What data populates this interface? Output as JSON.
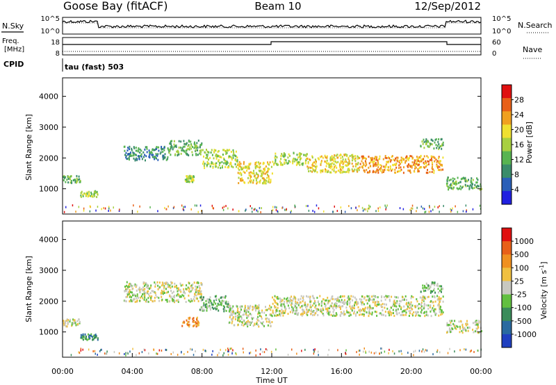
{
  "header": {
    "station": "Goose Bay (fitACF)",
    "beam": "Beam 10",
    "date": "12/Sep/2012"
  },
  "noise_panel": {
    "left_label": "N.Sky",
    "left_ticks": [
      "10^5",
      "10^0"
    ],
    "right_ticks": [
      "10^5",
      "10^0"
    ],
    "right_label": "N.Search"
  },
  "freq_panel": {
    "left_label_1": "Freq.",
    "left_label_2": "[MHz]",
    "left_ticks": [
      "18",
      "8"
    ],
    "right_ticks": [
      "60",
      "0"
    ],
    "right_label": "Nave"
  },
  "cpid": {
    "label": "CPID",
    "value": "tau (fast) 503"
  },
  "chart_data": [
    {
      "type": "heatmap",
      "quantity": "Power",
      "ylabel": "Slant Range [km]",
      "yticks": [
        "4000",
        "3000",
        "2000",
        "1000"
      ],
      "ylim": [
        180,
        4600
      ],
      "colorbar_label": "Power [dB]",
      "colorbar_ticks": [
        "28",
        "24",
        "20",
        "16",
        "12",
        "8",
        "4"
      ],
      "colors": [
        "#2020e0",
        "#2a5fb8",
        "#3a8c6a",
        "#58b450",
        "#a8d040",
        "#f0e030",
        "#f0a020",
        "#e86018",
        "#e01010"
      ],
      "scatter_regions": [
        {
          "x": [
            0.0,
            1.0
          ],
          "y": [
            1200,
            1450
          ],
          "level": 3
        },
        {
          "x": [
            1.0,
            2.0
          ],
          "y": [
            760,
            960
          ],
          "level": 4
        },
        {
          "x": [
            3.5,
            6.0
          ],
          "y": [
            1950,
            2400
          ],
          "level": 2
        },
        {
          "x": [
            6.0,
            8.0
          ],
          "y": [
            2100,
            2600
          ],
          "level": 3
        },
        {
          "x": [
            7.0,
            7.5
          ],
          "y": [
            1250,
            1450
          ],
          "level": 4
        },
        {
          "x": [
            8.0,
            10.0
          ],
          "y": [
            1700,
            2300
          ],
          "level": 4
        },
        {
          "x": [
            10.0,
            12.0
          ],
          "y": [
            1200,
            1900
          ],
          "level": 5
        },
        {
          "x": [
            12.0,
            14.0
          ],
          "y": [
            1800,
            2200
          ],
          "level": 4
        },
        {
          "x": [
            14.0,
            17.0
          ],
          "y": [
            1550,
            2150
          ],
          "level": 5
        },
        {
          "x": [
            17.0,
            21.8
          ],
          "y": [
            1550,
            2100
          ],
          "level": 6
        },
        {
          "x": [
            20.5,
            21.8
          ],
          "y": [
            2300,
            2650
          ],
          "level": 3
        },
        {
          "x": [
            22.0,
            24.0
          ],
          "y": [
            1000,
            1400
          ],
          "level": 3
        }
      ]
    },
    {
      "type": "heatmap",
      "quantity": "Velocity",
      "ylabel": "Slant Range [km]",
      "yticks": [
        "4000",
        "3000",
        "2000",
        "1000"
      ],
      "ylim": [
        180,
        4600
      ],
      "colorbar_label": "Velocity [m s^-1]",
      "colorbar_ticks": [
        "1000",
        "500",
        "100",
        "25",
        "-25",
        "-100",
        "-500",
        "-1000"
      ],
      "colors": [
        "#2040c0",
        "#2a6aa0",
        "#3a8c5a",
        "#62c040",
        "#c8c8c0",
        "#f0c040",
        "#f09020",
        "#e86018",
        "#e01010"
      ],
      "scatter_regions": [
        {
          "x": [
            0.0,
            1.0
          ],
          "y": [
            1200,
            1450
          ],
          "level": 4
        },
        {
          "x": [
            1.0,
            2.0
          ],
          "y": [
            760,
            960
          ],
          "level": 2
        },
        {
          "x": [
            3.5,
            8.0
          ],
          "y": [
            2000,
            2650
          ],
          "level": 4
        },
        {
          "x": [
            6.8,
            7.8
          ],
          "y": [
            1200,
            1500
          ],
          "level": 6
        },
        {
          "x": [
            7.8,
            9.5
          ],
          "y": [
            1700,
            2200
          ],
          "level": 3
        },
        {
          "x": [
            9.5,
            12.0
          ],
          "y": [
            1200,
            1900
          ],
          "level": 4
        },
        {
          "x": [
            12.0,
            21.8
          ],
          "y": [
            1550,
            2200
          ],
          "level": 4
        },
        {
          "x": [
            20.5,
            21.8
          ],
          "y": [
            2300,
            2650
          ],
          "level": 3
        },
        {
          "x": [
            22.0,
            24.0
          ],
          "y": [
            1000,
            1400
          ],
          "level": 4
        }
      ]
    }
  ],
  "xaxis": {
    "ticks": [
      "00:00",
      "04:00",
      "08:00",
      "12:00",
      "16:00",
      "20:00",
      "00:00"
    ],
    "xlim_hours": [
      0,
      24
    ],
    "label": "Time UT"
  }
}
